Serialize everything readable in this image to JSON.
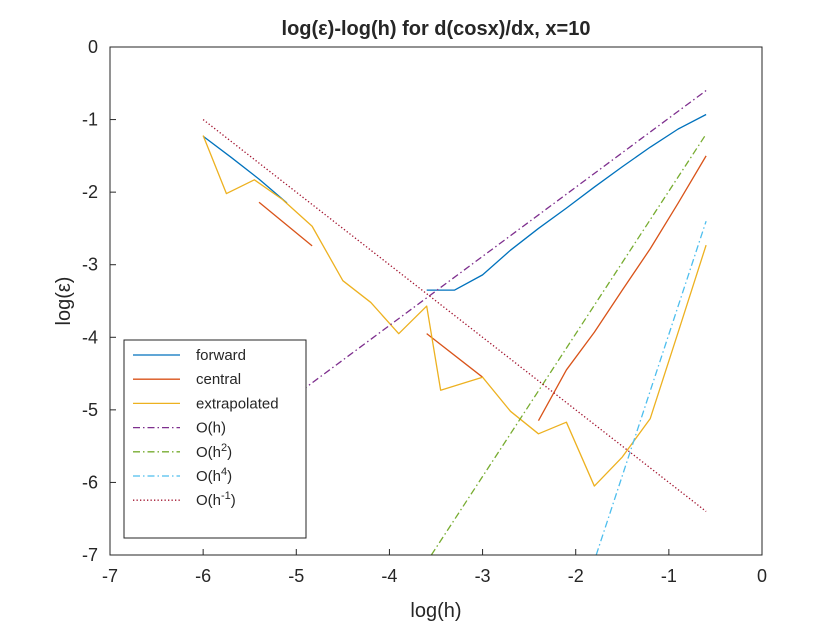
{
  "chart_data": {
    "type": "line",
    "title": "log(ε)-log(h) for d(cosx)/dx, x=10",
    "xlabel": "log(h)",
    "ylabel": "log(ε)",
    "xlim": [
      -7,
      0
    ],
    "ylim": [
      -7,
      0
    ],
    "xticks": [
      "-7",
      "-6",
      "-5",
      "-4",
      "-3",
      "-2",
      "-1",
      "0"
    ],
    "yticks": [
      "0",
      "-1",
      "-2",
      "-3",
      "-4",
      "-5",
      "-6",
      "-7"
    ],
    "xtick_values": [
      -7,
      -6,
      -5,
      -4,
      -3,
      -2,
      -1,
      0
    ],
    "ytick_values": [
      0,
      -1,
      -2,
      -3,
      -4,
      -5,
      -6,
      -7
    ],
    "grid": false,
    "legend_position": "bottom-left",
    "series": [
      {
        "name": "forward",
        "color": "#0072BD",
        "style": "solid",
        "segments": [
          [
            [
              -6.0,
              -1.23
            ],
            [
              -5.7,
              -1.52
            ],
            [
              -5.4,
              -1.82
            ],
            [
              -5.1,
              -2.15
            ]
          ],
          [
            [
              -3.6,
              -3.35
            ],
            [
              -3.3,
              -3.35
            ],
            [
              -3.0,
              -3.14
            ],
            [
              -2.7,
              -2.8
            ],
            [
              -2.4,
              -2.5
            ],
            [
              -2.1,
              -2.22
            ],
            [
              -1.8,
              -1.93
            ],
            [
              -1.5,
              -1.65
            ],
            [
              -1.2,
              -1.38
            ],
            [
              -0.9,
              -1.13
            ],
            [
              -0.6,
              -0.93
            ]
          ]
        ]
      },
      {
        "name": "central",
        "color": "#D95319",
        "style": "solid",
        "segments": [
          [
            [
              -5.4,
              -2.14
            ],
            [
              -4.83,
              -2.74
            ]
          ],
          [
            [
              -3.6,
              -3.95
            ],
            [
              -3.0,
              -4.55
            ]
          ],
          [
            [
              -2.4,
              -5.15
            ],
            [
              -2.1,
              -4.45
            ],
            [
              -1.8,
              -3.93
            ],
            [
              -1.5,
              -3.35
            ],
            [
              -1.2,
              -2.78
            ],
            [
              -0.9,
              -2.15
            ],
            [
              -0.6,
              -1.5
            ]
          ]
        ]
      },
      {
        "name": "extrapolated",
        "color": "#EDB120",
        "style": "solid",
        "segments": [
          [
            [
              -6.0,
              -1.22
            ],
            [
              -5.75,
              -2.02
            ],
            [
              -5.45,
              -1.83
            ],
            [
              -5.15,
              -2.1
            ],
            [
              -4.83,
              -2.47
            ],
            [
              -4.5,
              -3.22
            ],
            [
              -4.2,
              -3.52
            ],
            [
              -3.9,
              -3.95
            ],
            [
              -3.6,
              -3.57
            ],
            [
              -3.45,
              -4.73
            ],
            [
              -3.0,
              -4.55
            ],
            [
              -2.7,
              -5.02
            ],
            [
              -2.4,
              -5.33
            ],
            [
              -2.1,
              -5.17
            ],
            [
              -1.8,
              -6.05
            ],
            [
              -1.5,
              -5.65
            ],
            [
              -1.2,
              -5.12
            ],
            [
              -0.9,
              -3.93
            ],
            [
              -0.6,
              -2.73
            ]
          ]
        ]
      },
      {
        "name": "O(h)",
        "label_base": "O(h",
        "label_sup": "",
        "color": "#7E2F8E",
        "style": "dashdot",
        "segments": [
          [
            [
              -5.2,
              -4.98
            ],
            [
              -0.6,
              -0.6
            ]
          ]
        ]
      },
      {
        "name": "O(h2)",
        "label_base": "O(h",
        "label_sup": "2",
        "color": "#77AC30",
        "style": "dashdot",
        "segments": [
          [
            [
              -3.55,
              -7.0
            ],
            [
              -0.6,
              -1.2
            ]
          ]
        ]
      },
      {
        "name": "O(h4)",
        "label_base": "O(h",
        "label_sup": "4",
        "color": "#4DBEEE",
        "style": "dashdot",
        "segments": [
          [
            [
              -1.78,
              -7.0
            ],
            [
              -0.6,
              -2.4
            ]
          ]
        ]
      },
      {
        "name": "O(h-1)",
        "label_base": "O(h",
        "label_sup": "-1",
        "color": "#A2142F",
        "style": "dotted",
        "segments": [
          [
            [
              -6.0,
              -1.0
            ],
            [
              -0.6,
              -6.4
            ]
          ]
        ]
      }
    ]
  }
}
